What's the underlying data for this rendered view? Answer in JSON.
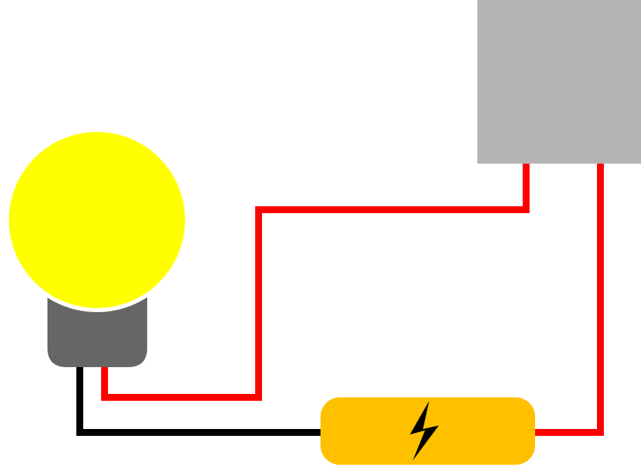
{
  "diagram": {
    "components": {
      "bulb": {
        "name": "light-bulb",
        "glass_color": "#ffff00",
        "base_color": "#666666",
        "outline_color": "#ffffff"
      },
      "switch_box": {
        "name": "switch-box",
        "color": "#b3b3b3"
      },
      "battery": {
        "name": "battery",
        "color": "#ffc000",
        "icon": "lightning-bolt-icon",
        "icon_color": "#000000"
      }
    },
    "wires": [
      {
        "name": "wire-bulb-to-switch",
        "color": "#ff0000"
      },
      {
        "name": "wire-switch-to-battery",
        "color": "#ff0000"
      },
      {
        "name": "wire-battery-to-bulb",
        "color": "#000000"
      }
    ]
  }
}
